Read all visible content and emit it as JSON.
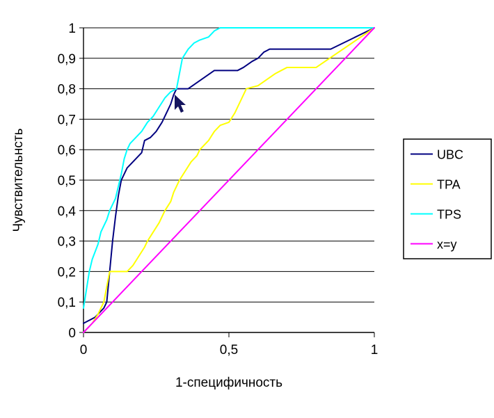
{
  "chart_data": {
    "type": "line",
    "title": "",
    "xlabel": "1-специфичность",
    "ylabel": "Чувствительнсть",
    "xlim": [
      0,
      1
    ],
    "ylim": [
      0,
      1
    ],
    "grid": "horizontal",
    "legend_position": "right",
    "x_ticks": [
      {
        "v": 0,
        "label": "0"
      },
      {
        "v": 0.5,
        "label": "0,5"
      },
      {
        "v": 1,
        "label": "1"
      }
    ],
    "y_ticks": [
      {
        "v": 0,
        "label": "0"
      },
      {
        "v": 0.1,
        "label": "0,1"
      },
      {
        "v": 0.2,
        "label": "0,2"
      },
      {
        "v": 0.3,
        "label": "0,3"
      },
      {
        "v": 0.4,
        "label": "0,4"
      },
      {
        "v": 0.5,
        "label": "0,5"
      },
      {
        "v": 0.6,
        "label": "0,6"
      },
      {
        "v": 0.7,
        "label": "0,7"
      },
      {
        "v": 0.8,
        "label": "0,8"
      },
      {
        "v": 0.9,
        "label": "0,9"
      },
      {
        "v": 1,
        "label": "1"
      }
    ],
    "series": [
      {
        "name": "UBC",
        "color": "#000080",
        "points": [
          [
            0,
            0.03
          ],
          [
            0.04,
            0.05
          ],
          [
            0.07,
            0.08
          ],
          [
            0.08,
            0.1
          ],
          [
            0.09,
            0.2
          ],
          [
            0.1,
            0.3
          ],
          [
            0.11,
            0.38
          ],
          [
            0.12,
            0.45
          ],
          [
            0.13,
            0.5
          ],
          [
            0.15,
            0.54
          ],
          [
            0.17,
            0.56
          ],
          [
            0.19,
            0.58
          ],
          [
            0.2,
            0.59
          ],
          [
            0.21,
            0.63
          ],
          [
            0.23,
            0.64
          ],
          [
            0.25,
            0.66
          ],
          [
            0.27,
            0.69
          ],
          [
            0.29,
            0.73
          ],
          [
            0.3,
            0.75
          ],
          [
            0.31,
            0.78
          ],
          [
            0.32,
            0.8
          ],
          [
            0.36,
            0.8
          ],
          [
            0.39,
            0.82
          ],
          [
            0.42,
            0.84
          ],
          [
            0.45,
            0.86
          ],
          [
            0.5,
            0.86
          ],
          [
            0.53,
            0.86
          ],
          [
            0.55,
            0.87
          ],
          [
            0.58,
            0.89
          ],
          [
            0.6,
            0.9
          ],
          [
            0.62,
            0.92
          ],
          [
            0.64,
            0.93
          ],
          [
            0.7,
            0.93
          ],
          [
            0.78,
            0.93
          ],
          [
            0.85,
            0.93
          ],
          [
            1,
            1
          ]
        ]
      },
      {
        "name": "TPA",
        "color": "#ffff00",
        "points": [
          [
            0,
            0
          ],
          [
            0.03,
            0.03
          ],
          [
            0.05,
            0.06
          ],
          [
            0.07,
            0.1
          ],
          [
            0.08,
            0.15
          ],
          [
            0.09,
            0.2
          ],
          [
            0.12,
            0.2
          ],
          [
            0.15,
            0.2
          ],
          [
            0.17,
            0.22
          ],
          [
            0.19,
            0.25
          ],
          [
            0.21,
            0.28
          ],
          [
            0.22,
            0.3
          ],
          [
            0.24,
            0.33
          ],
          [
            0.26,
            0.36
          ],
          [
            0.28,
            0.4
          ],
          [
            0.3,
            0.43
          ],
          [
            0.31,
            0.46
          ],
          [
            0.33,
            0.5
          ],
          [
            0.35,
            0.53
          ],
          [
            0.37,
            0.56
          ],
          [
            0.39,
            0.58
          ],
          [
            0.4,
            0.6
          ],
          [
            0.43,
            0.63
          ],
          [
            0.45,
            0.66
          ],
          [
            0.47,
            0.68
          ],
          [
            0.5,
            0.69
          ],
          [
            0.52,
            0.72
          ],
          [
            0.54,
            0.76
          ],
          [
            0.56,
            0.8
          ],
          [
            0.6,
            0.81
          ],
          [
            0.63,
            0.83
          ],
          [
            0.66,
            0.85
          ],
          [
            0.68,
            0.86
          ],
          [
            0.7,
            0.87
          ],
          [
            0.75,
            0.87
          ],
          [
            0.8,
            0.87
          ],
          [
            1,
            1
          ]
        ]
      },
      {
        "name": "TPS",
        "color": "#00ffff",
        "points": [
          [
            0,
            0.08
          ],
          [
            0.01,
            0.14
          ],
          [
            0.02,
            0.2
          ],
          [
            0.03,
            0.24
          ],
          [
            0.05,
            0.29
          ],
          [
            0.06,
            0.33
          ],
          [
            0.08,
            0.37
          ],
          [
            0.09,
            0.4
          ],
          [
            0.11,
            0.44
          ],
          [
            0.12,
            0.48
          ],
          [
            0.13,
            0.52
          ],
          [
            0.14,
            0.57
          ],
          [
            0.15,
            0.6
          ],
          [
            0.16,
            0.62
          ],
          [
            0.18,
            0.64
          ],
          [
            0.2,
            0.66
          ],
          [
            0.22,
            0.69
          ],
          [
            0.24,
            0.71
          ],
          [
            0.26,
            0.74
          ],
          [
            0.28,
            0.77
          ],
          [
            0.3,
            0.79
          ],
          [
            0.32,
            0.8
          ],
          [
            0.33,
            0.85
          ],
          [
            0.34,
            0.9
          ],
          [
            0.36,
            0.93
          ],
          [
            0.38,
            0.95
          ],
          [
            0.4,
            0.96
          ],
          [
            0.43,
            0.97
          ],
          [
            0.45,
            0.99
          ],
          [
            0.47,
            1
          ],
          [
            0.55,
            1
          ],
          [
            1,
            1
          ]
        ]
      },
      {
        "name": "x=y",
        "color": "#ff00ff",
        "points": [
          [
            0,
            0
          ],
          [
            1,
            1
          ]
        ]
      }
    ]
  },
  "legend": {
    "items": [
      "UBC",
      "TPA",
      "TPS",
      "x=y"
    ]
  }
}
